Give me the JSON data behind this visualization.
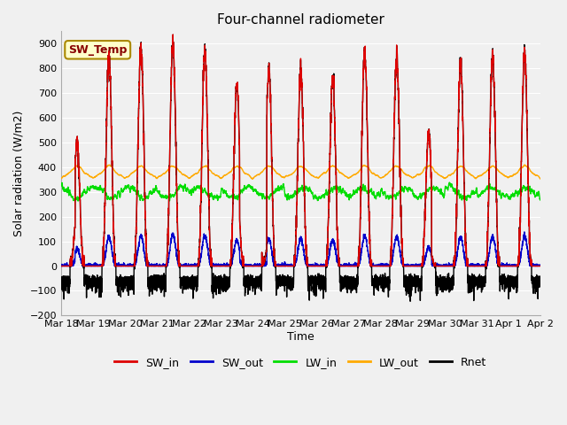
{
  "title": "Four-channel radiometer",
  "xlabel": "Time",
  "ylabel": "Solar radiation (W/m2)",
  "ylim": [
    -200,
    950
  ],
  "yticks": [
    -200,
    -100,
    0,
    100,
    200,
    300,
    400,
    500,
    600,
    700,
    800,
    900
  ],
  "x_labels": [
    "Mar 18",
    "Mar 19",
    "Mar 20",
    "Mar 21",
    "Mar 22",
    "Mar 23",
    "Mar 24",
    "Mar 25",
    "Mar 26",
    "Mar 27",
    "Mar 28",
    "Mar 29",
    "Mar 30",
    "Mar 31",
    "Apr 1",
    "Apr 2"
  ],
  "n_days": 15,
  "colors": {
    "SW_in": "#dd0000",
    "SW_out": "#0000cc",
    "LW_in": "#00dd00",
    "LW_out": "#ffaa00",
    "Rnet": "#000000"
  },
  "legend_label": "SW_Temp",
  "legend_box_facecolor": "#ffffcc",
  "legend_box_edge": "#aa8800",
  "bg_color": "#f0f0f0",
  "plot_bg_color": "#f0f0f0",
  "grid_color": "#ffffff",
  "figsize": [
    6.4,
    4.8
  ],
  "dpi": 100,
  "sw_peaks": [
    500,
    845,
    880,
    900,
    870,
    740,
    790,
    790,
    760,
    860,
    850,
    540,
    820,
    850,
    860
  ],
  "lw_in_base": 300,
  "lw_out_base": 355
}
